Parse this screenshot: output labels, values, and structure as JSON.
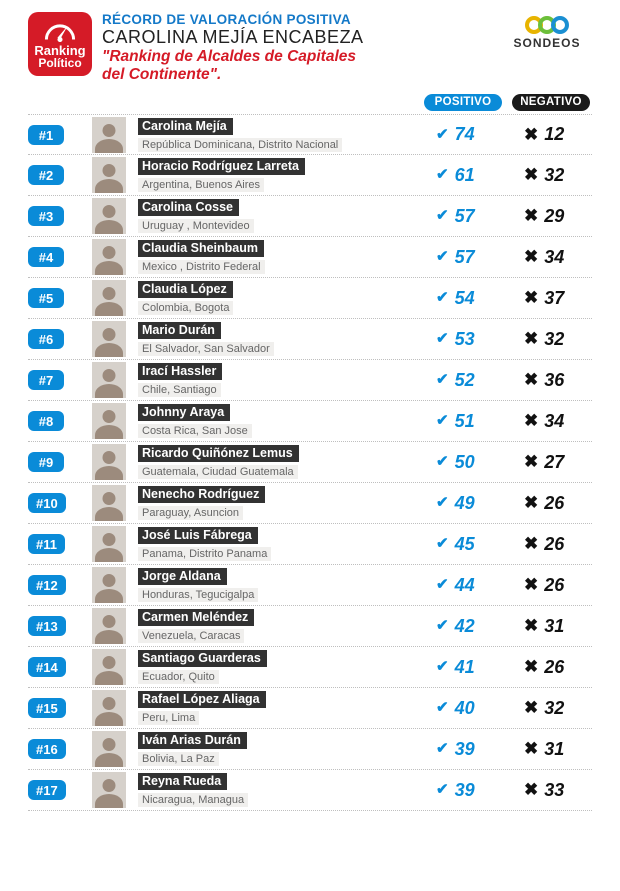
{
  "colors": {
    "brand_red": "#d51b27",
    "brand_blue": "#1479c8",
    "accent_blue": "#0a8bd8",
    "accent_dark": "#1a1a1a",
    "location_bg": "#f0efed",
    "row_border": "#bfbfbf",
    "name_stripe": "#323232",
    "avatar_bg": "#d6d1cb",
    "sondeos_yellow": "#e8b400",
    "sondeos_green": "#6cbf3a",
    "sondeos_blue": "#1a8fd2"
  },
  "header": {
    "logo_line1": "Ranking",
    "logo_line2": "Político",
    "line1": "RÉCORD DE VALORACIÓN POSITIVA",
    "line2": "CAROLINA MEJÍA ENCABEZA",
    "line3": "\"Ranking de Alcaldes de Capitales",
    "line4": "del Continente\".",
    "sondeos": "SONDEOS"
  },
  "cols": {
    "positivo": "POSITIVO",
    "negativo": "NEGATIVO"
  },
  "rows": [
    {
      "rank": "#1",
      "name": "Carolina Mejía",
      "loc": "República Dominicana, Distrito Nacional",
      "pos": 74,
      "neg": 12
    },
    {
      "rank": "#2",
      "name": "Horacio Rodríguez Larreta",
      "loc": "Argentina, Buenos Aires",
      "pos": 61,
      "neg": 32
    },
    {
      "rank": "#3",
      "name": "Carolina Cosse",
      "loc": "Uruguay , Montevideo",
      "pos": 57,
      "neg": 29
    },
    {
      "rank": "#4",
      "name": "Claudia Sheinbaum",
      "loc": "Mexico , Distrito Federal",
      "pos": 57,
      "neg": 34
    },
    {
      "rank": "#5",
      "name": "Claudia López",
      "loc": "Colombia, Bogota",
      "pos": 54,
      "neg": 37
    },
    {
      "rank": "#6",
      "name": "Mario Durán",
      "loc": "El Salvador, San Salvador",
      "pos": 53,
      "neg": 32
    },
    {
      "rank": "#7",
      "name": "Irací Hassler",
      "loc": "Chile, Santiago",
      "pos": 52,
      "neg": 36
    },
    {
      "rank": "#8",
      "name": "Johnny Araya",
      "loc": "Costa Rica,  San Jose",
      "pos": 51,
      "neg": 34
    },
    {
      "rank": "#9",
      "name": "Ricardo Quiñónez Lemus",
      "loc": "Guatemala, Ciudad Guatemala",
      "pos": 50,
      "neg": 27
    },
    {
      "rank": "#10",
      "name": "Nenecho Rodríguez",
      "loc": "Paraguay, Asuncion",
      "pos": 49,
      "neg": 26
    },
    {
      "rank": "#11",
      "name": "José Luis Fábrega",
      "loc": "Panama, Distrito Panama",
      "pos": 45,
      "neg": 26
    },
    {
      "rank": "#12",
      "name": "Jorge Aldana",
      "loc": "Honduras, Tegucigalpa",
      "pos": 44,
      "neg": 26
    },
    {
      "rank": "#13",
      "name": "Carmen Meléndez",
      "loc": "Venezuela, Caracas",
      "pos": 42,
      "neg": 31
    },
    {
      "rank": "#14",
      "name": "Santiago Guarderas",
      "loc": "Ecuador, Quito",
      "pos": 41,
      "neg": 26
    },
    {
      "rank": "#15",
      "name": "Rafael López Aliaga",
      "loc": "Peru, Lima",
      "pos": 40,
      "neg": 32
    },
    {
      "rank": "#16",
      "name": "Iván Arias Durán",
      "loc": "Bolivia, La Paz",
      "pos": 39,
      "neg": 31
    },
    {
      "rank": "#17",
      "name": "Reyna Rueda",
      "loc": "Nicaragua, Managua",
      "pos": 39,
      "neg": 33
    }
  ],
  "icons": {
    "check": "✔",
    "cross": "✖"
  }
}
